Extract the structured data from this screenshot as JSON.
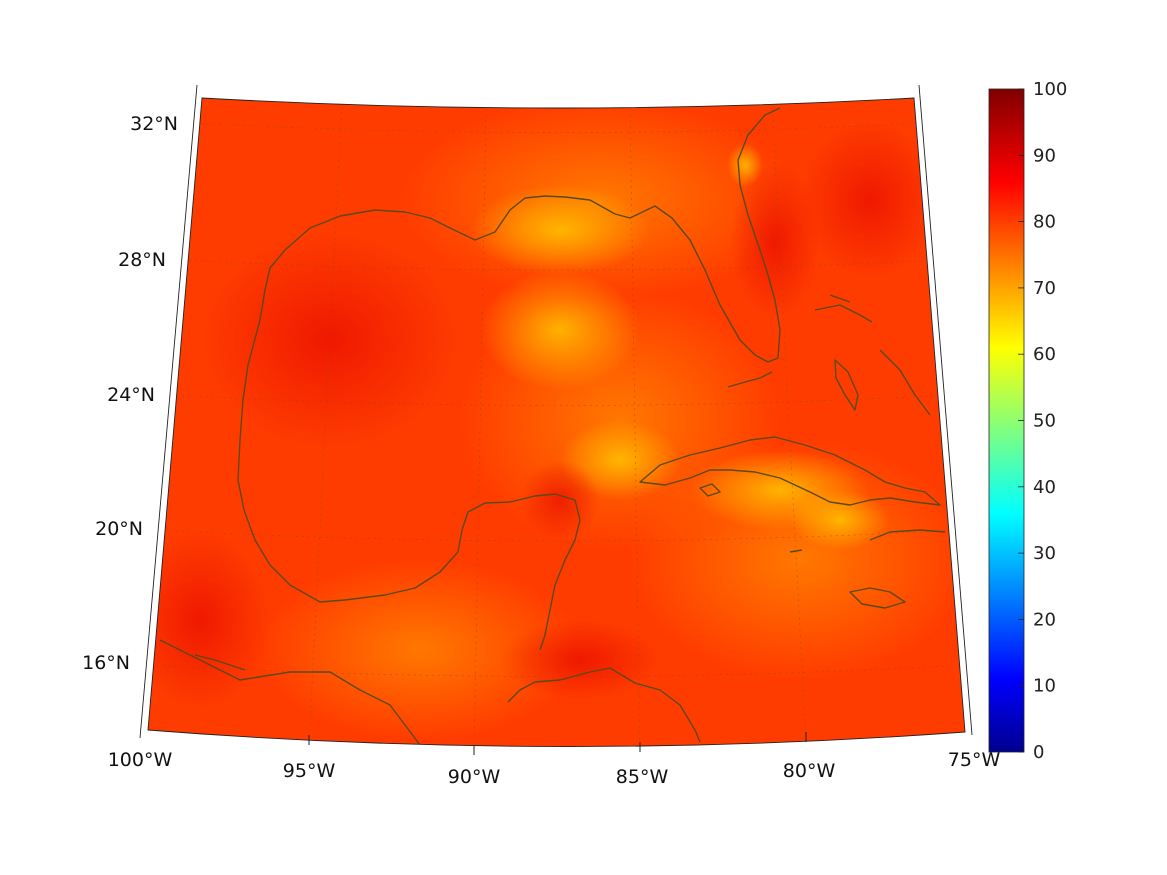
{
  "map": {
    "longitude_labels": [
      "100°W",
      "95°W",
      "90°W",
      "85°W",
      "80°W",
      "75°W"
    ],
    "latitude_labels": [
      "32°N",
      "28°N",
      "24°N",
      "20°N",
      "16°N"
    ],
    "projection": "conic",
    "extent": {
      "lon_min": -100,
      "lon_max": -75,
      "lat_min": 14,
      "lat_max": 33
    },
    "grid": "dotted",
    "coastline_color": "#5a4a1a"
  },
  "colorbar": {
    "colormap": "jet",
    "ticks": [
      "100",
      "90",
      "80",
      "70",
      "60",
      "50",
      "40",
      "30",
      "20",
      "10",
      "0"
    ],
    "range": [
      0,
      100
    ],
    "placement": "right"
  },
  "field": {
    "dominant_color": "#ff3300",
    "value_range_shown": [
      65,
      95
    ]
  }
}
